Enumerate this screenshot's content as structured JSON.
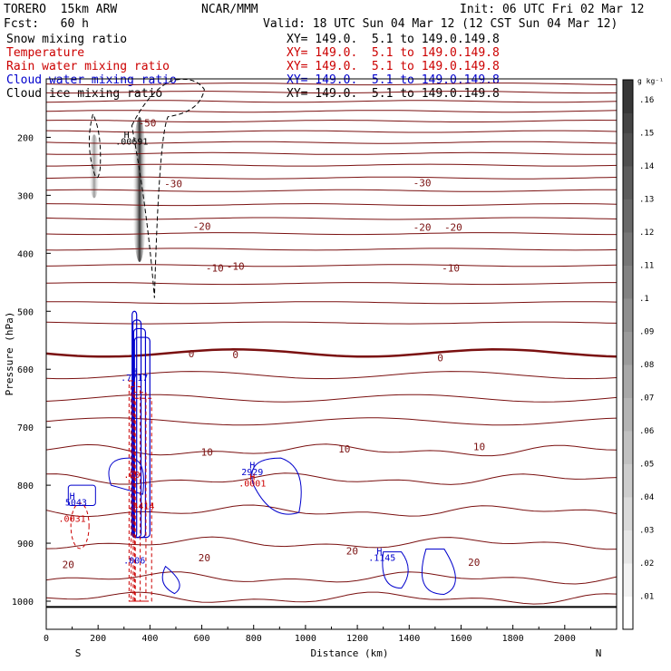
{
  "header": {
    "model": "TORERO  15km ARW",
    "org": "NCAR/MMM",
    "init": "Init: 06 UTC Fri 02 Mar 12",
    "fcst": "Fcst:   60 h",
    "valid": "Valid: 18 UTC Sun 04 Mar 12 (12 CST Sun 04 Mar 12)"
  },
  "legend": [
    {
      "name": "Snow mixing ratio",
      "xy": "XY= 149.0.  5.1 to 149.0.149.8",
      "color": "#000000"
    },
    {
      "name": "Temperature",
      "xy": "XY= 149.0.  5.1 to 149.0.149.8",
      "color": "#cc0000"
    },
    {
      "name": "Rain water mixing ratio",
      "xy": "XY= 149.0.  5.1 to 149.0.149.8",
      "color": "#cc0000"
    },
    {
      "name": "Cloud water mixing ratio",
      "xy": "XY= 149.0.  5.1 to 149.0.149.8",
      "color": "#0000cc"
    },
    {
      "name": "Cloud ice mixing ratio",
      "xy": "XY= 149.0.  5.1 to 149.0.149.8",
      "color": "#000000"
    }
  ],
  "chart_data": {
    "type": "cross-section",
    "xlabel": "Distance (km)",
    "ylabel": "Pressure (hPa)",
    "xlim": [
      0,
      2200
    ],
    "ylim": [
      1050,
      100
    ],
    "x_ticks": [
      0,
      200,
      400,
      600,
      800,
      1000,
      1200,
      1400,
      1600,
      1800,
      2000
    ],
    "y_ticks": [
      200,
      300,
      400,
      500,
      600,
      700,
      800,
      900,
      1000
    ],
    "x_end_labels": {
      "left": "S",
      "right": "N"
    },
    "colorbar": {
      "unit": "g kg⁻¹",
      "ticks": [
        ".01",
        ".02",
        ".03",
        ".04",
        ".05",
        ".06",
        ".07",
        ".08",
        ".09",
        ".1",
        ".11",
        ".12",
        ".13",
        ".14",
        ".15",
        ".16"
      ]
    },
    "temperature_contours": [
      {
        "label": "-50",
        "x": 390,
        "p": 175
      },
      {
        "label": "-30",
        "x": 490,
        "p": 280
      },
      {
        "label": "-30",
        "x": 1450,
        "p": 278
      },
      {
        "label": "-20",
        "x": 600,
        "p": 353
      },
      {
        "label": "-20",
        "x": 1450,
        "p": 355
      },
      {
        "label": "-20",
        "x": 1570,
        "p": 355
      },
      {
        "label": "-10",
        "x": 650,
        "p": 425
      },
      {
        "label": "-10",
        "x": 730,
        "p": 422
      },
      {
        "label": "-10",
        "x": 1560,
        "p": 425
      },
      {
        "label": "0",
        "x": 560,
        "p": 573
      },
      {
        "label": "0",
        "x": 730,
        "p": 575
      },
      {
        "label": "0",
        "x": 1520,
        "p": 580
      },
      {
        "label": "10",
        "x": 620,
        "p": 743
      },
      {
        "label": "10",
        "x": 1150,
        "p": 737
      },
      {
        "label": "10",
        "x": 1670,
        "p": 733
      },
      {
        "label": "20",
        "x": 85,
        "p": 937
      },
      {
        "label": "20",
        "x": 610,
        "p": 925
      },
      {
        "label": "20",
        "x": 1180,
        "p": 913
      },
      {
        "label": "20",
        "x": 1650,
        "p": 933
      }
    ],
    "maxima_labels": [
      {
        "text": "H",
        "x": 310,
        "p": 195,
        "color": "#000000"
      },
      {
        "text": ".00691",
        "x": 330,
        "p": 206,
        "color": "#000000"
      },
      {
        "text": "H",
        "x": 340,
        "p": 603,
        "color": "#0000cc"
      },
      {
        "text": ".7717",
        "x": 340,
        "p": 614,
        "color": "#0000cc"
      },
      {
        "text": "H",
        "x": 795,
        "p": 765,
        "color": "#0000cc"
      },
      {
        "text": "2929",
        "x": 795,
        "p": 776,
        "color": "#0000cc"
      },
      {
        "text": "H",
        "x": 795,
        "p": 785,
        "color": "#cc0000"
      },
      {
        "text": ".0001",
        "x": 795,
        "p": 796,
        "color": "#cc0000"
      },
      {
        "text": "H",
        "x": 100,
        "p": 818,
        "color": "#0000cc"
      },
      {
        "text": "5043",
        "x": 115,
        "p": 829,
        "color": "#0000cc"
      },
      {
        "text": ".0031",
        "x": 100,
        "p": 857,
        "color": "#cc0000"
      },
      {
        "text": ".00",
        "x": 330,
        "p": 781,
        "color": "#cc0000"
      },
      {
        "text": ".4414",
        "x": 365,
        "p": 835,
        "color": "#cc0000"
      },
      {
        "text": ".006",
        "x": 340,
        "p": 929,
        "color": "#0000cc"
      },
      {
        "text": "H",
        "x": 1285,
        "p": 913,
        "color": "#0000cc"
      },
      {
        "text": ".1145",
        "x": 1295,
        "p": 924,
        "color": "#0000cc"
      }
    ]
  }
}
